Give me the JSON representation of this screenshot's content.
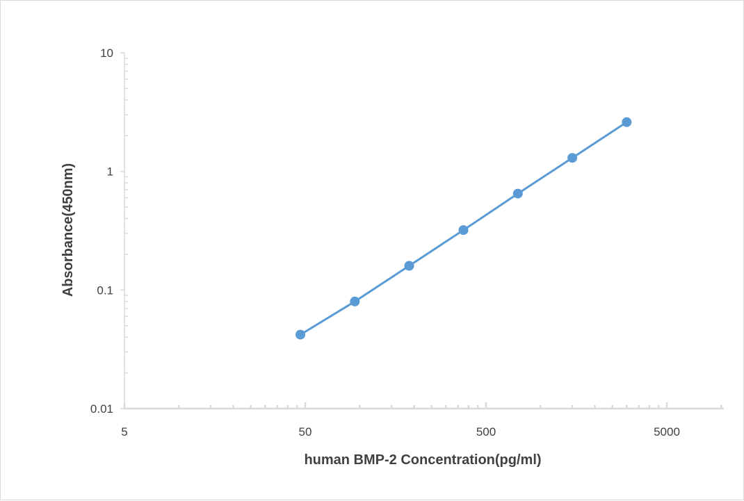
{
  "chart_data": {
    "type": "scatter",
    "title": "",
    "xlabel": "human BMP-2 Concentration(pg/ml)",
    "ylabel": "Absorbance(450nm)",
    "x_scale": "log",
    "y_scale": "log",
    "xlim": [
      5,
      15000
    ],
    "ylim": [
      0.01,
      10
    ],
    "x_tick_labels": [
      "5",
      "50",
      "500",
      "5000"
    ],
    "y_tick_labels": [
      "0.01",
      "0.1",
      "1",
      "10"
    ],
    "grid": false,
    "legend": "none",
    "series": [
      {
        "color": "#5b9bd5",
        "markers": true,
        "line": true,
        "points": [
          {
            "x": 47,
            "y": 0.042
          },
          {
            "x": 94,
            "y": 0.08
          },
          {
            "x": 188,
            "y": 0.16
          },
          {
            "x": 375,
            "y": 0.32
          },
          {
            "x": 750,
            "y": 0.65
          },
          {
            "x": 1500,
            "y": 1.3
          },
          {
            "x": 3000,
            "y": 2.6
          }
        ]
      }
    ],
    "axis_color": "#d9d9d9",
    "text_color": "#404040"
  }
}
